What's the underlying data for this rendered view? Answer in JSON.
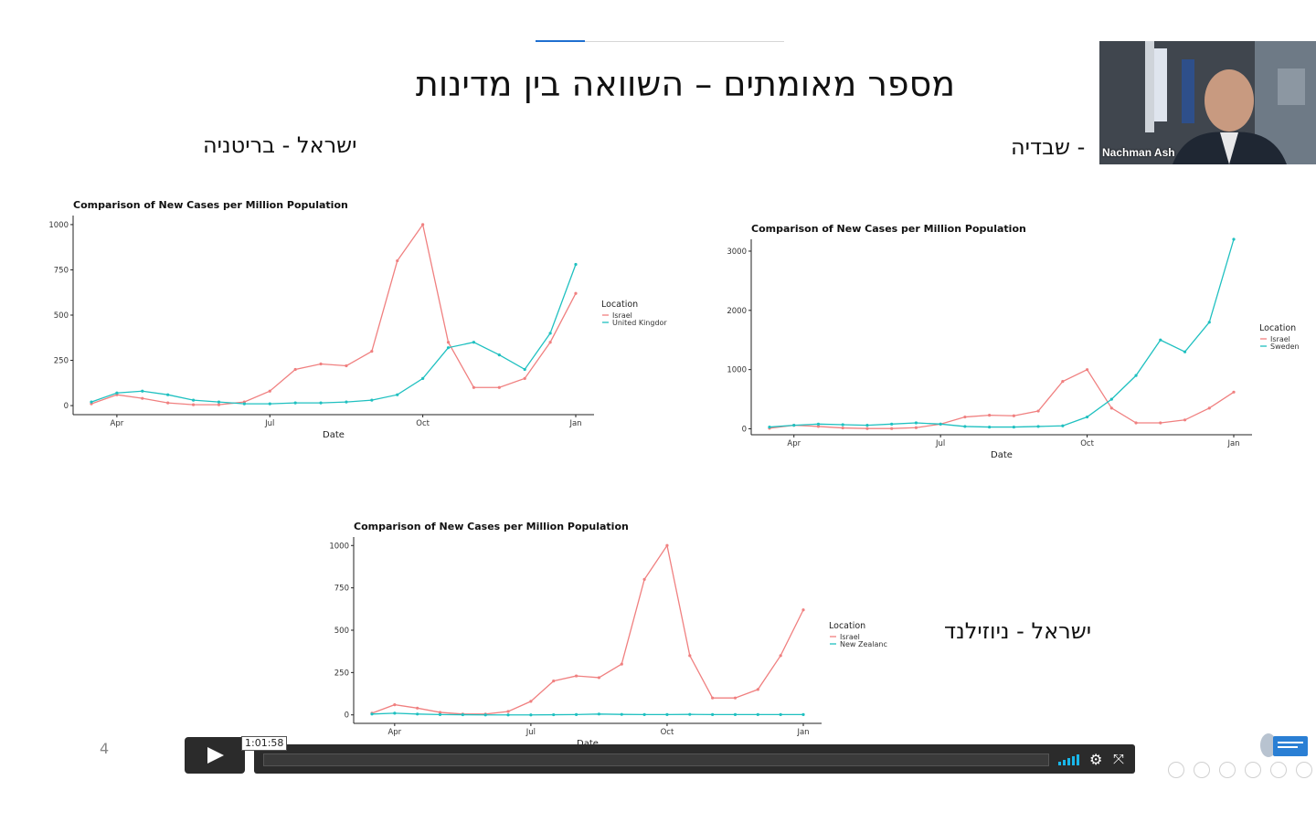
{
  "slide": {
    "title": "מספר מאומתים – השוואה בין מדינות",
    "sub_uk": "ישראל - בריטניה",
    "sub_se": "- שבדיה",
    "sub_nz": "ישראל - ניוזילנד",
    "page_number": "4"
  },
  "webcam": {
    "name": "Nachman Ash"
  },
  "player": {
    "time": "1:01:58"
  },
  "colors": {
    "israel": "#f08080",
    "other": "#1fc0c0",
    "accent": "#19b7ea"
  },
  "chart_data": [
    {
      "type": "line",
      "title": "Comparison of New Cases per Million Population",
      "xlabel": "Date",
      "ylabel": "",
      "legend_title": "Location",
      "legend_position": "right",
      "x_ticks": [
        "Apr",
        "Jul",
        "Oct",
        "Jan"
      ],
      "y_ticks": [
        0,
        250,
        500,
        750,
        1000
      ],
      "ylim": [
        -50,
        1050
      ],
      "x": [
        "Mar 15",
        "Apr 1",
        "Apr 15",
        "May 1",
        "May 15",
        "Jun 1",
        "Jun 15",
        "Jul 1",
        "Jul 15",
        "Aug 1",
        "Aug 15",
        "Sep 1",
        "Sep 15",
        "Oct 1",
        "Oct 15",
        "Nov 1",
        "Nov 15",
        "Dec 1",
        "Dec 15",
        "Jan 1"
      ],
      "series": [
        {
          "name": "Israel",
          "values": [
            10,
            60,
            40,
            15,
            5,
            5,
            20,
            80,
            200,
            230,
            220,
            300,
            800,
            1000,
            350,
            100,
            100,
            150,
            350,
            620
          ]
        },
        {
          "name": "United Kingdor",
          "values": [
            20,
            70,
            80,
            60,
            30,
            20,
            10,
            10,
            15,
            15,
            20,
            30,
            60,
            150,
            320,
            350,
            280,
            200,
            400,
            780
          ]
        }
      ]
    },
    {
      "type": "line",
      "title": "Comparison of New Cases per Million Population",
      "xlabel": "Date",
      "ylabel": "",
      "legend_title": "Location",
      "legend_position": "right",
      "x_ticks": [
        "Apr",
        "Jul",
        "Oct",
        "Jan"
      ],
      "y_ticks": [
        0,
        1000,
        2000,
        3000
      ],
      "ylim": [
        -100,
        3200
      ],
      "x": [
        "Mar 15",
        "Apr 1",
        "Apr 15",
        "May 1",
        "May 15",
        "Jun 1",
        "Jun 15",
        "Jul 1",
        "Jul 15",
        "Aug 1",
        "Aug 15",
        "Sep 1",
        "Sep 15",
        "Oct 1",
        "Oct 15",
        "Nov 1",
        "Nov 15",
        "Dec 1",
        "Dec 15",
        "Jan 1"
      ],
      "series": [
        {
          "name": "Israel",
          "values": [
            10,
            60,
            40,
            15,
            5,
            5,
            20,
            80,
            200,
            230,
            220,
            300,
            800,
            1000,
            350,
            100,
            100,
            150,
            350,
            620
          ]
        },
        {
          "name": "Sweden",
          "values": [
            30,
            60,
            80,
            70,
            60,
            80,
            100,
            80,
            40,
            30,
            30,
            40,
            50,
            200,
            500,
            900,
            1500,
            1300,
            1800,
            3200
          ]
        }
      ]
    },
    {
      "type": "line",
      "title": "Comparison of New Cases per Million Population",
      "xlabel": "Date",
      "ylabel": "",
      "legend_title": "Location",
      "legend_position": "right",
      "x_ticks": [
        "Apr",
        "Jul",
        "Oct",
        "Jan"
      ],
      "y_ticks": [
        0,
        250,
        500,
        750,
        1000
      ],
      "ylim": [
        -50,
        1050
      ],
      "x": [
        "Mar 15",
        "Apr 1",
        "Apr 15",
        "May 1",
        "May 15",
        "Jun 1",
        "Jun 15",
        "Jul 1",
        "Jul 15",
        "Aug 1",
        "Aug 15",
        "Sep 1",
        "Sep 15",
        "Oct 1",
        "Oct 15",
        "Nov 1",
        "Nov 15",
        "Dec 1",
        "Dec 15",
        "Jan 1"
      ],
      "series": [
        {
          "name": "Israel",
          "values": [
            10,
            60,
            40,
            15,
            5,
            5,
            20,
            80,
            200,
            230,
            220,
            300,
            800,
            1000,
            350,
            100,
            100,
            150,
            350,
            620
          ]
        },
        {
          "name": "New Zealanc",
          "values": [
            5,
            10,
            5,
            2,
            1,
            0,
            0,
            0,
            1,
            2,
            5,
            3,
            2,
            2,
            3,
            2,
            2,
            2,
            2,
            2
          ]
        }
      ]
    }
  ]
}
